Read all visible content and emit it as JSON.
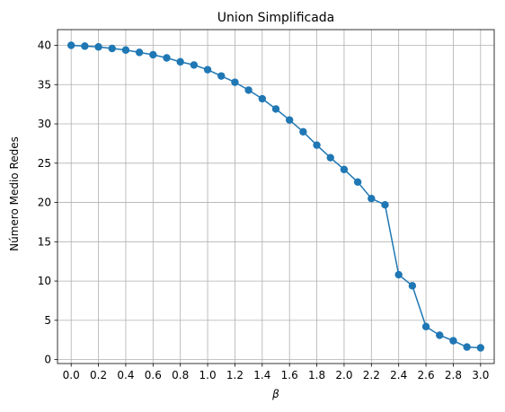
{
  "chart_data": {
    "type": "line",
    "title": "Union Simplificada",
    "xlabel": "β",
    "ylabel": "Número Medio Redes",
    "xlim": [
      -0.1,
      3.1
    ],
    "ylim": [
      -0.5,
      42.0
    ],
    "xticks": [
      0.0,
      0.2,
      0.4,
      0.6,
      0.8,
      1.0,
      1.2,
      1.4,
      1.6,
      1.8,
      2.0,
      2.2,
      2.4,
      2.6,
      2.8,
      3.0
    ],
    "xtick_labels": [
      "0.0",
      "0.2",
      "0.4",
      "0.6",
      "0.8",
      "1.0",
      "1.2",
      "1.4",
      "1.6",
      "1.8",
      "2.0",
      "2.2",
      "2.4",
      "2.6",
      "2.8",
      "3.0"
    ],
    "yticks": [
      0,
      5,
      10,
      15,
      20,
      25,
      30,
      35,
      40
    ],
    "ytick_labels": [
      "0",
      "5",
      "10",
      "15",
      "20",
      "25",
      "30",
      "35",
      "40"
    ],
    "grid": true,
    "marker": "circle",
    "color": "#1f77b4",
    "series": [
      {
        "x": [
          0.0,
          0.1,
          0.2,
          0.3,
          0.4,
          0.5,
          0.6,
          0.7,
          0.8,
          0.9,
          1.0,
          1.1,
          1.2,
          1.3,
          1.4,
          1.5,
          1.6,
          1.7,
          1.8,
          1.9,
          2.0,
          2.1,
          2.2,
          2.3,
          2.4,
          2.5,
          2.6,
          2.7,
          2.8,
          2.9,
          3.0
        ],
        "values": [
          40.0,
          39.9,
          39.8,
          39.6,
          39.4,
          39.1,
          38.8,
          38.4,
          37.9,
          37.5,
          36.9,
          36.1,
          35.3,
          34.3,
          33.2,
          31.9,
          30.5,
          29.0,
          27.3,
          25.7,
          24.2,
          22.6,
          20.5,
          19.7,
          10.8,
          9.4,
          4.2,
          3.1,
          2.4,
          1.6,
          1.5
        ]
      }
    ]
  }
}
